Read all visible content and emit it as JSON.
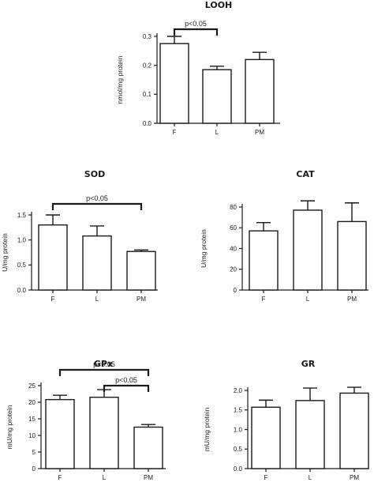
{
  "chart_data": [
    {
      "type": "bar",
      "title": "LOOH",
      "ylabel": "nmol/mg protein",
      "categories": [
        "F",
        "L",
        "PM"
      ],
      "values": [
        0.275,
        0.185,
        0.22
      ],
      "errors": [
        0.025,
        0.012,
        0.025
      ],
      "ylim": [
        0,
        0.3
      ],
      "yticks": [
        "0.0",
        "0.1",
        "0.2",
        "0.3"
      ],
      "ytick_values": [
        0,
        0.1,
        0.2,
        0.3
      ],
      "significance": [
        {
          "from": 0,
          "to": 1,
          "label": "p<0.05"
        }
      ],
      "grid": false
    },
    {
      "type": "bar",
      "title": "SOD",
      "ylabel": "U/mg protein",
      "categories": [
        "F",
        "L",
        "PM"
      ],
      "values": [
        1.3,
        1.08,
        0.77
      ],
      "errors": [
        0.2,
        0.2,
        0.03
      ],
      "ylim": [
        0,
        1.5
      ],
      "yticks": [
        "0.0",
        "0.5",
        "1.0",
        "1.5"
      ],
      "ytick_values": [
        0,
        0.5,
        1.0,
        1.5
      ],
      "significance": [
        {
          "from": 0,
          "to": 2,
          "label": "p<0.05"
        }
      ],
      "grid": false
    },
    {
      "type": "bar",
      "title": "CAT",
      "ylabel": "U/mg protein",
      "categories": [
        "F",
        "L",
        "PM"
      ],
      "values": [
        57,
        77,
        66
      ],
      "errors": [
        8,
        9,
        18
      ],
      "ylim": [
        0,
        80
      ],
      "yticks": [
        "0",
        "20",
        "40",
        "60",
        "80"
      ],
      "ytick_values": [
        0,
        20,
        40,
        60,
        80
      ],
      "significance": [],
      "grid": false
    },
    {
      "type": "bar",
      "title": "GPx",
      "ylabel": "mU/mg protein",
      "categories": [
        "F",
        "L",
        "PM"
      ],
      "values": [
        20.8,
        21.5,
        12.5
      ],
      "errors": [
        1.3,
        2.3,
        0.8
      ],
      "ylim": [
        0,
        25
      ],
      "yticks": [
        "0",
        "5",
        "10",
        "15",
        "20",
        "25"
      ],
      "ytick_values": [
        0,
        5,
        10,
        15,
        20,
        25
      ],
      "significance": [
        {
          "from": 0,
          "to": 2,
          "label": "p<0.05"
        },
        {
          "from": 1,
          "to": 2,
          "label": "p<0.05"
        }
      ],
      "grid": false
    },
    {
      "type": "bar",
      "title": "GR",
      "ylabel": "mU/mg protein",
      "categories": [
        "F",
        "L",
        "PM"
      ],
      "values": [
        1.57,
        1.74,
        1.93
      ],
      "errors": [
        0.18,
        0.32,
        0.15
      ],
      "ylim": [
        0,
        2.0
      ],
      "yticks": [
        "0.0",
        "0.5",
        "1.0",
        "1.5",
        "2.0"
      ],
      "ytick_values": [
        0,
        0.5,
        1.0,
        1.5,
        2.0
      ],
      "significance": [],
      "grid": false
    }
  ]
}
